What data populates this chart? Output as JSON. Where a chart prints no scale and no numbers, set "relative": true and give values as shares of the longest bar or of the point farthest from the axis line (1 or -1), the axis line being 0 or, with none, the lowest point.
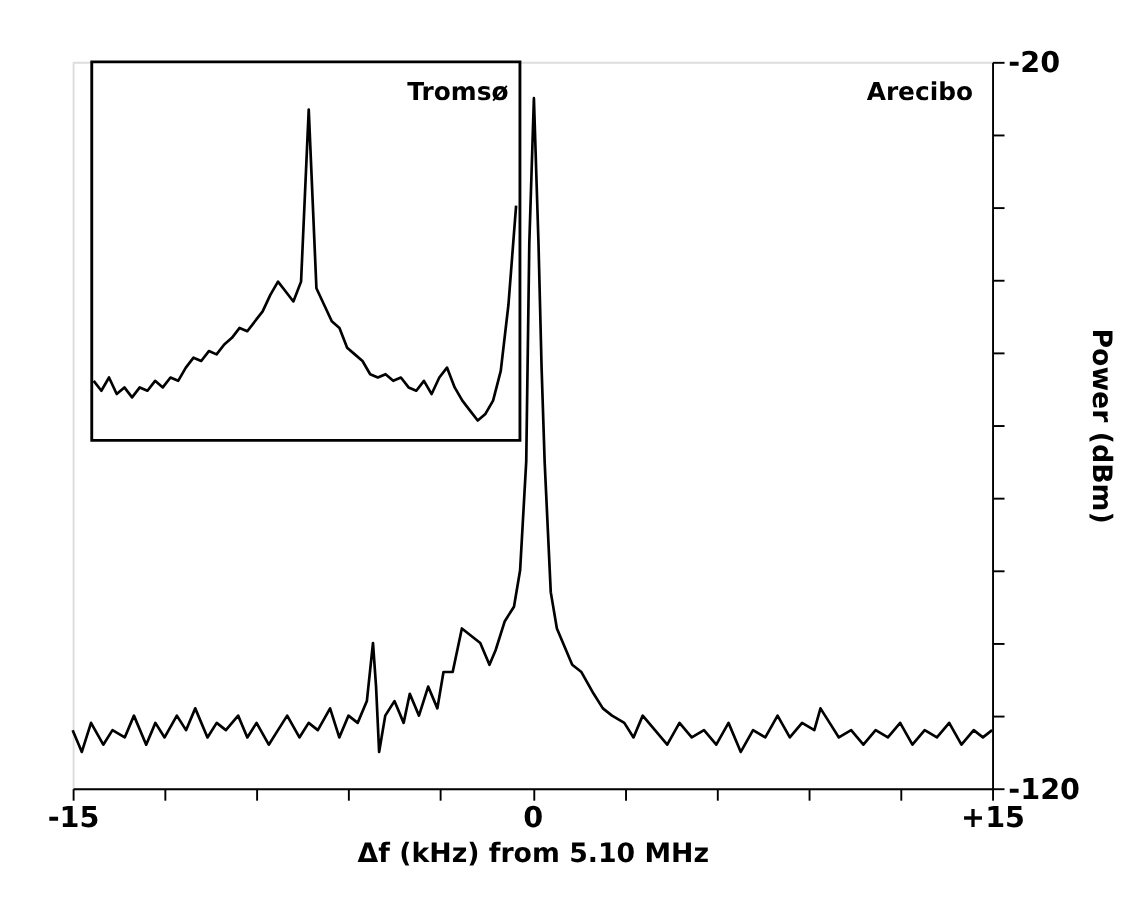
{
  "chart_data": [
    {
      "type": "line",
      "xlabel": "Δf (kHz) from 5.10 MHz",
      "ylabel": "Power (dBm)",
      "x": [
        -15,
        -14.7,
        -14.4,
        -14,
        -13.7,
        -13.3,
        -13,
        -12.6,
        -12.3,
        -12,
        -11.6,
        -11.3,
        -11,
        -10.6,
        -10.3,
        -10,
        -9.6,
        -9.3,
        -9,
        -8.6,
        -8.3,
        -8,
        -7.6,
        -7.3,
        -7,
        -6.6,
        -6.3,
        -6,
        -5.7,
        -5.4,
        -5.2,
        -5.1,
        -5.0,
        -4.8,
        -4.5,
        -4.2,
        -4,
        -3.7,
        -3.4,
        -3.1,
        -2.9,
        -2.6,
        -2.3,
        -2,
        -1.7,
        -1.4,
        -1.2,
        -0.9,
        -0.6,
        -0.4,
        -0.2,
        -0.1,
        0.05,
        0.2,
        0.3,
        0.4,
        0.6,
        0.8,
        1,
        1.3,
        1.6,
        2,
        2.3,
        2.6,
        3,
        3.3,
        3.6,
        4,
        4.4,
        4.8,
        5.2,
        5.6,
        6,
        6.4,
        6.8,
        7.2,
        7.6,
        8,
        8.4,
        8.8,
        9.2,
        9.4,
        9.7,
        10,
        10.4,
        10.8,
        11.2,
        11.6,
        12,
        12.4,
        12.8,
        13.2,
        13.6,
        14,
        14.4,
        14.7,
        15
      ],
      "series": [
        {
          "name": "Arecibo",
          "color": "#000000",
          "values": [
            -112,
            -115,
            -111,
            -114,
            -112,
            -113,
            -110,
            -114,
            -111,
            -113,
            -110,
            -112,
            -109,
            -113,
            -111,
            -112,
            -110,
            -113,
            -111,
            -114,
            -112,
            -110,
            -113,
            -111,
            -112,
            -109,
            -113,
            -110,
            -111,
            -108,
            -100,
            -106,
            -115,
            -110,
            -108,
            -111,
            -107,
            -110,
            -106,
            -109,
            -104,
            -104,
            -98,
            -99,
            -100,
            -103,
            -101,
            -97,
            -95,
            -90,
            -75,
            -45,
            -25,
            -45,
            -62,
            -75,
            -93,
            -98,
            -100,
            -103,
            -104,
            -107,
            -109,
            -110,
            -111,
            -113,
            -110,
            -112,
            -114,
            -111,
            -113,
            -112,
            -114,
            -111,
            -115,
            -112,
            -113,
            -110,
            -113,
            -111,
            -112,
            -109,
            -111,
            -113,
            -112,
            -114,
            -112,
            -113,
            -111,
            -114,
            -112,
            -113,
            -111,
            -114,
            -112,
            -113,
            -112
          ]
        }
      ],
      "xlim": [
        -15,
        15
      ],
      "xticks": [
        -15,
        {
          "value": -12,
          "label": null
        },
        {
          "value": -9,
          "label": null
        },
        {
          "value": -6,
          "label": null
        },
        {
          "value": -3,
          "label": null
        },
        0,
        {
          "value": 3,
          "label": null
        },
        {
          "value": 6,
          "label": null
        },
        {
          "value": 9,
          "label": null
        },
        {
          "value": 12,
          "label": null
        },
        {
          "value": 15,
          "label": "+15"
        }
      ],
      "ylim": [
        -120,
        -20
      ],
      "yticks": [
        -120,
        {
          "value": -110,
          "label": null
        },
        {
          "value": -100,
          "label": null
        },
        {
          "value": -90,
          "label": null
        },
        {
          "value": -80,
          "label": null
        },
        {
          "value": -70,
          "label": null
        },
        {
          "value": -60,
          "label": null
        },
        {
          "value": -50,
          "label": null
        },
        {
          "value": -40,
          "label": null
        },
        {
          "value": -30,
          "label": null
        },
        -20
      ]
    },
    {
      "type": "line",
      "relative": true,
      "categories": [
        null,
        null,
        null,
        null,
        null,
        null,
        null,
        null,
        null,
        null,
        null,
        null,
        null,
        null,
        null,
        null,
        null,
        null,
        null,
        null,
        null,
        null,
        null,
        null,
        null,
        null,
        null,
        null,
        null,
        null,
        null,
        null,
        null,
        null,
        null,
        null,
        null,
        null,
        null,
        null,
        null,
        null,
        null,
        null,
        null,
        null,
        null,
        null,
        null,
        null,
        null,
        null,
        null,
        null,
        null,
        null
      ],
      "series": [
        {
          "name": "Tromsø",
          "color": "#000000",
          "values": [
            0.18,
            0.15,
            0.19,
            0.14,
            0.16,
            0.13,
            0.16,
            0.15,
            0.18,
            0.16,
            0.19,
            0.18,
            0.22,
            0.25,
            0.24,
            0.27,
            0.26,
            0.29,
            0.31,
            0.34,
            0.33,
            0.36,
            0.39,
            0.44,
            0.48,
            0.45,
            0.42,
            0.48,
            1,
            0.46,
            0.41,
            0.36,
            0.34,
            0.28,
            0.26,
            0.24,
            0.2,
            0.19,
            0.2,
            0.18,
            0.19,
            0.16,
            0.15,
            0.18,
            0.14,
            0.19,
            0.22,
            0.16,
            0.12,
            0.09,
            0.06,
            0.08,
            0.12,
            0.21,
            0.41,
            0.71
          ]
        }
      ]
    }
  ]
}
